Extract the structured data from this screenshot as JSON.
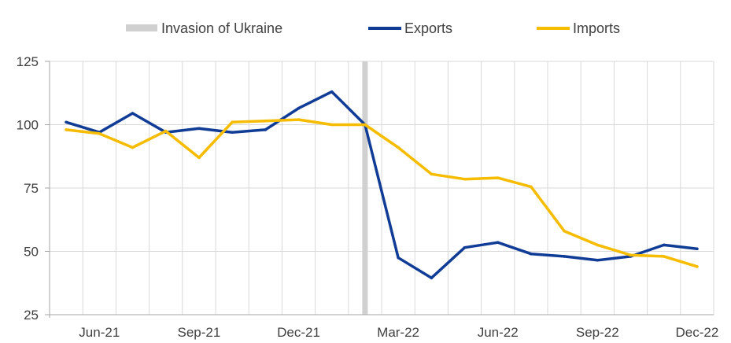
{
  "chart_data": {
    "type": "line",
    "title": "",
    "xlabel": "",
    "ylabel": "",
    "ylim": [
      25,
      125
    ],
    "yticks": [
      25,
      50,
      75,
      100,
      125
    ],
    "grid": true,
    "legend_position": "top",
    "x_ticks": [
      "Jun-21",
      "Sep-21",
      "Dec-21",
      "Mar-22",
      "Jun-22",
      "Sep-22",
      "Dec-22"
    ],
    "x": [
      "May-21",
      "Jun-21",
      "Jul-21",
      "Aug-21",
      "Sep-21",
      "Oct-21",
      "Nov-21",
      "Dec-21",
      "Jan-22",
      "Feb-22",
      "Mar-22",
      "Apr-22",
      "May-22",
      "Jun-22",
      "Jul-22",
      "Aug-22",
      "Sep-22",
      "Oct-22",
      "Nov-22",
      "Dec-22"
    ],
    "event": {
      "name": "Invasion of Ukraine",
      "x": "Feb-22",
      "color": "#d0d0d0"
    },
    "series": [
      {
        "name": "Exports",
        "color": "#103c96",
        "values": [
          101,
          97,
          104.5,
          97,
          98.5,
          97,
          98,
          106.5,
          113,
          100,
          47.5,
          39.5,
          51.5,
          53.5,
          49,
          48,
          46.5,
          48,
          52.5,
          51
        ]
      },
      {
        "name": "Imports",
        "color": "#f5bc00",
        "values": [
          98,
          96.5,
          91,
          97.5,
          87,
          101,
          101.5,
          102,
          100,
          100,
          91,
          80.5,
          78.5,
          79,
          75.5,
          58,
          52.5,
          48.5,
          48,
          44
        ]
      }
    ]
  }
}
